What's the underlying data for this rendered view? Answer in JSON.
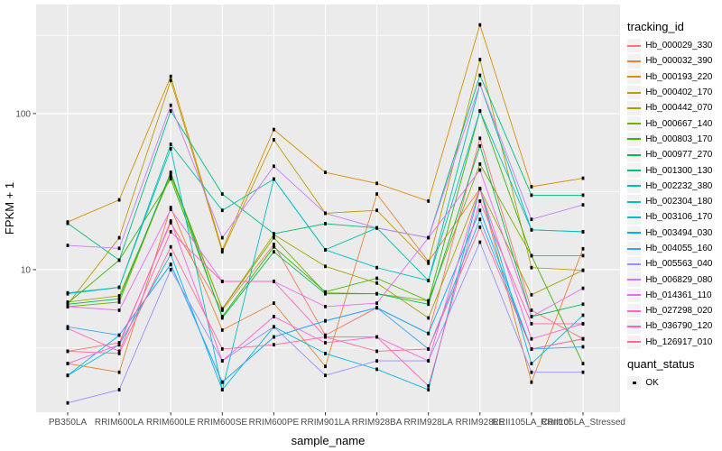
{
  "theme": {
    "background": "#FFFFFF",
    "panel_background": "#EBEBEB",
    "grid_color": "#FFFFFF",
    "axis_text_color": "#4D4D4D",
    "axis_title_color": "#000000",
    "tick_color": "#333333",
    "legend_key_background": "#F2F2F2"
  },
  "legend": {
    "tracking_title": "tracking_id",
    "quant_title": "quant_status",
    "quant_items": [
      {
        "label": "OK",
        "color": "#000000",
        "shape": "square"
      }
    ]
  },
  "chart_data": {
    "type": "line",
    "title": "",
    "xlabel": "sample_name",
    "ylabel": "FPKM + 1",
    "y_scale": "log10",
    "y_major_ticks": [
      10,
      100
    ],
    "y_major_tick_labels": [
      "10",
      "100"
    ],
    "y_minor_ticks": [
      3.162,
      31.62,
      316.2
    ],
    "ylim": [
      1.22,
      500
    ],
    "grid": true,
    "legend_position": "right",
    "point_marker": {
      "shape": "square",
      "color": "#000000",
      "label": "OK"
    },
    "categories": [
      "PB350LA",
      "RRIM600LA",
      "RRIM600LE",
      "RRIM600SE",
      "RRIM600PE",
      "RRIM901LA",
      "RRIM928BA",
      "RRIM928LA",
      "RRIM928LE",
      "RRII105LA_Control",
      "RRII105LA_Stressed"
    ],
    "series": [
      {
        "name": "Hb_000029_330",
        "color": "#F8766D",
        "values": [
          3.0,
          3.4,
          20.0,
          5.5,
          14.5,
          3.8,
          5.7,
          3.9,
          69.5,
          5.5,
          3.6
        ]
      },
      {
        "name": "Hb_000032_390",
        "color": "#EA8331",
        "values": [
          2.5,
          2.2,
          25.0,
          4.1,
          6.1,
          2.4,
          30.5,
          11.3,
          33.0,
          1.9,
          13.6
        ]
      },
      {
        "name": "Hb_000193_220",
        "color": "#D89000",
        "values": [
          20.2,
          28.0,
          173.0,
          13.4,
          79.0,
          42.0,
          35.7,
          27.5,
          370.0,
          34.0,
          38.5
        ]
      },
      {
        "name": "Hb_000402_170",
        "color": "#C09B00",
        "values": [
          6.0,
          16.0,
          163.0,
          13.0,
          68.0,
          23.0,
          24.0,
          11.0,
          222.0,
          10.3,
          9.9
        ]
      },
      {
        "name": "Hb_000442_070",
        "color": "#A3A500",
        "values": [
          6.2,
          6.8,
          40.0,
          5.6,
          16.8,
          10.5,
          8.2,
          4.9,
          33.0,
          6.9,
          9.9
        ]
      },
      {
        "name": "Hb_000667_140",
        "color": "#7CAE00",
        "values": [
          5.8,
          6.2,
          41.5,
          5.6,
          16.0,
          7.1,
          7.0,
          6.3,
          47.5,
          12.3,
          12.3
        ]
      },
      {
        "name": "Hb_000803_170",
        "color": "#39B600",
        "values": [
          6.1,
          11.5,
          38.2,
          5.0,
          14.0,
          7.2,
          8.8,
          6.3,
          104.0,
          12.3,
          2.5
        ]
      },
      {
        "name": "Hb_000977_270",
        "color": "#00BB4E",
        "values": [
          6.0,
          6.5,
          42.0,
          4.9,
          13.0,
          7.0,
          7.0,
          6.0,
          62.0,
          5.0,
          6.0
        ]
      },
      {
        "name": "Hb_001300_130",
        "color": "#00BF7D",
        "values": [
          19.8,
          11.5,
          104.0,
          30.5,
          17.0,
          19.7,
          18.5,
          16.0,
          176.0,
          30.0,
          30.0
        ]
      },
      {
        "name": "Hb_002232_380",
        "color": "#00C1A3",
        "values": [
          7.1,
          7.7,
          63.5,
          24.0,
          38.0,
          13.4,
          18.5,
          8.5,
          154.0,
          18.0,
          17.5
        ]
      },
      {
        "name": "Hb_002304_180",
        "color": "#00BFC4",
        "values": [
          7.0,
          7.7,
          59.5,
          1.7,
          38.0,
          13.4,
          10.3,
          8.5,
          104.0,
          18.0,
          17.5
        ]
      },
      {
        "name": "Hb_003106_170",
        "color": "#00BAE0",
        "values": [
          2.1,
          3.3,
          12.5,
          1.7,
          4.3,
          2.9,
          2.3,
          1.7,
          33.0,
          2.5,
          5.1
        ]
      },
      {
        "name": "Hb_003494_030",
        "color": "#00B0F6",
        "values": [
          2.1,
          3.8,
          10.8,
          1.9,
          3.7,
          4.7,
          5.7,
          3.9,
          24.0,
          3.1,
          3.6
        ]
      },
      {
        "name": "Hb_004055_160",
        "color": "#35A2FF",
        "values": [
          4.3,
          3.8,
          10.8,
          1.9,
          3.7,
          4.7,
          5.7,
          3.1,
          21.0,
          3.1,
          3.2
        ]
      },
      {
        "name": "Hb_005563_040",
        "color": "#9590FF",
        "values": [
          1.4,
          1.7,
          10.0,
          2.6,
          4.3,
          2.1,
          2.6,
          2.6,
          15.0,
          2.2,
          2.2
        ]
      },
      {
        "name": "Hb_006829_080",
        "color": "#C77CFF",
        "values": [
          14.3,
          13.7,
          113.0,
          16.0,
          46.0,
          23.0,
          18.5,
          16.0,
          154.0,
          21.0,
          26.0
        ]
      },
      {
        "name": "Hb_014361_110",
        "color": "#E76BF3",
        "values": [
          5.8,
          5.5,
          24.3,
          8.4,
          8.4,
          5.8,
          6.1,
          16.0,
          43.5,
          5.0,
          7.6
        ]
      },
      {
        "name": "Hb_027298_020",
        "color": "#FA62DB",
        "values": [
          2.5,
          3.3,
          20.5,
          2.6,
          5.0,
          3.4,
          3.7,
          2.6,
          33.0,
          3.6,
          4.5
        ]
      },
      {
        "name": "Hb_036790_120",
        "color": "#FF62BC",
        "values": [
          4.2,
          3.0,
          17.5,
          8.4,
          8.4,
          3.7,
          3.7,
          1.8,
          27.5,
          4.5,
          4.5
        ]
      },
      {
        "name": "Hb_126917_010",
        "color": "#FF6A98",
        "values": [
          3.0,
          2.9,
          14.0,
          3.1,
          3.3,
          3.7,
          3.0,
          3.1,
          18.7,
          3.1,
          3.6
        ]
      }
    ]
  }
}
